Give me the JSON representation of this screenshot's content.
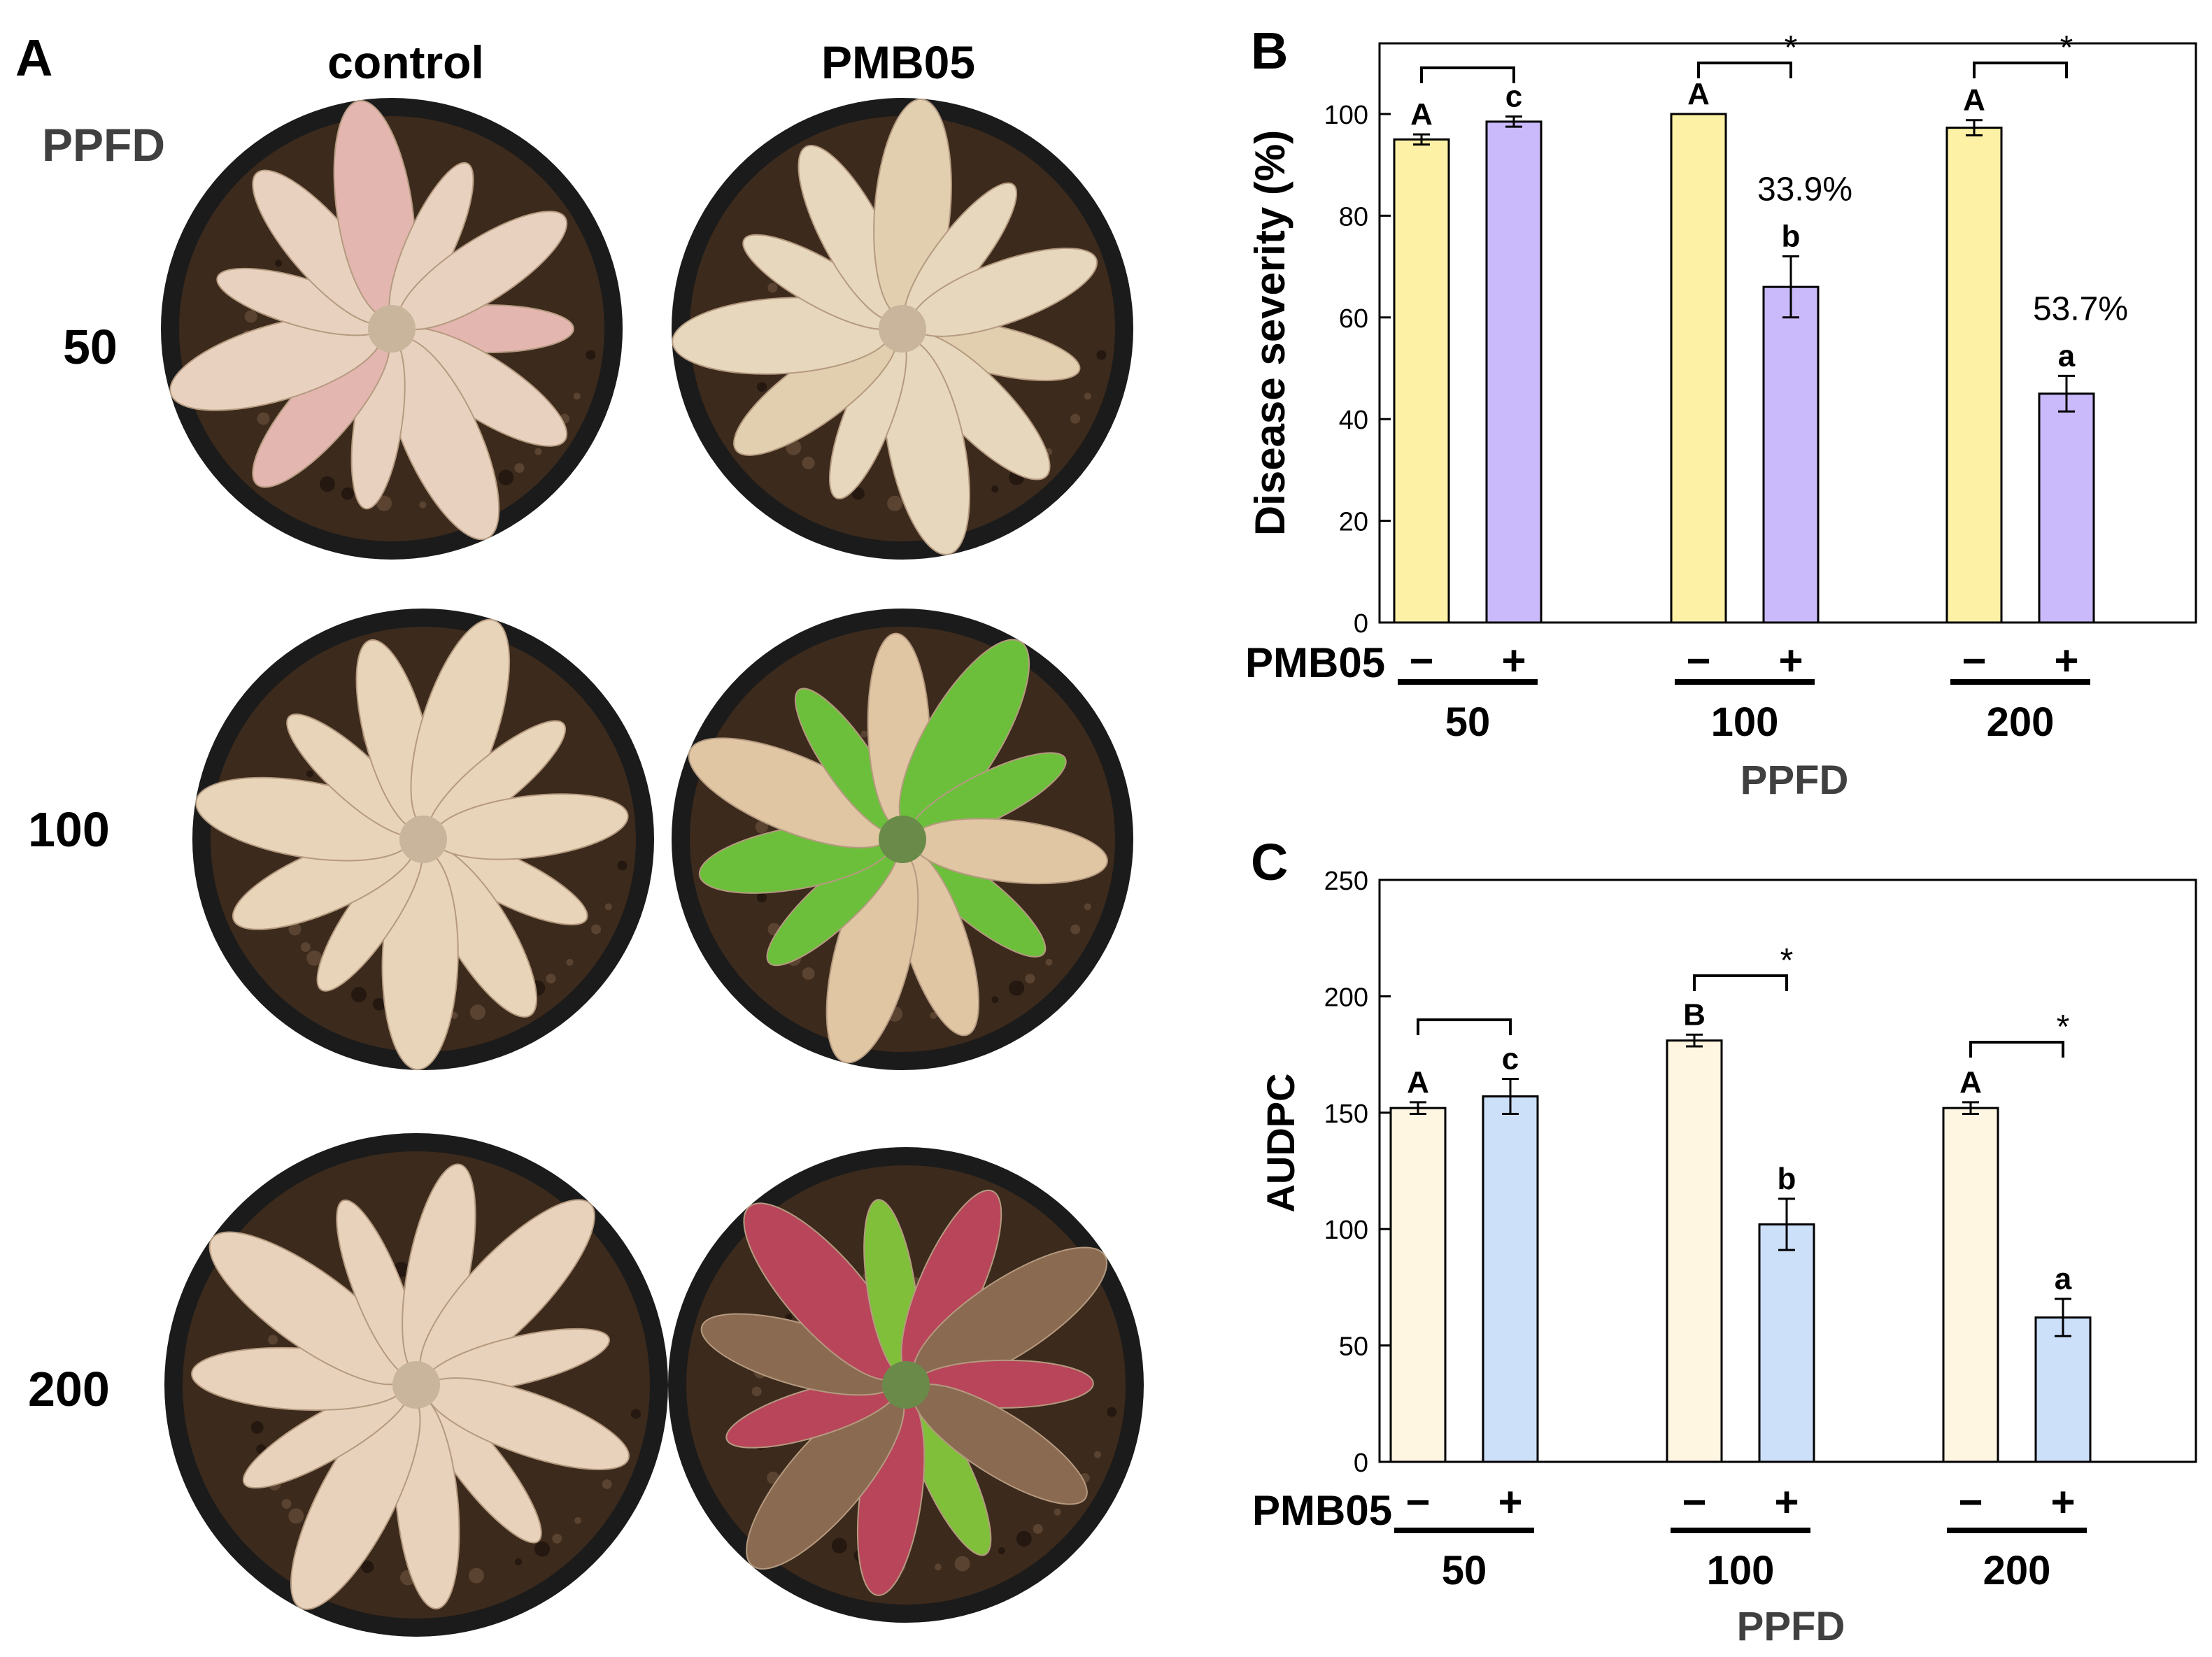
{
  "panel_a": {
    "label": "A",
    "col_headers": [
      "control",
      "PMB05"
    ],
    "row_title": "PPFD",
    "row_labels": [
      "50",
      "100",
      "200"
    ],
    "photos": [
      {
        "row": "50",
        "treatment": "control",
        "plant": "dead",
        "leaf_color": "#e8d2bf",
        "accent": "#e4b6b0"
      },
      {
        "row": "50",
        "treatment": "PMB05",
        "plant": "dead",
        "leaf_color": "#e6d7bd",
        "accent": "#e2cfb0"
      },
      {
        "row": "100",
        "treatment": "control",
        "plant": "dead",
        "leaf_color": "#e8d4b8",
        "accent": "#e8d4b8"
      },
      {
        "row": "100",
        "treatment": "PMB05",
        "plant": "green",
        "leaf_color": "#e0c6a3",
        "accent": "#6cbf3a"
      },
      {
        "row": "200",
        "treatment": "control",
        "plant": "dead",
        "leaf_color": "#e8d2bb",
        "accent": "#e8d2bb"
      },
      {
        "row": "200",
        "treatment": "PMB05",
        "plant": "red-green",
        "leaf_color": "#b8455a",
        "accent": "#7fbf3a"
      }
    ]
  },
  "chart_data": [
    {
      "panel": "B",
      "type": "bar",
      "ylabel": "Disease severity (%)",
      "xlabel": "PPFD",
      "ylim": [
        0,
        100
      ],
      "yticks": [
        0,
        20,
        40,
        60,
        80,
        100
      ],
      "grid": false,
      "categories": [
        "50",
        "100",
        "200"
      ],
      "factor_label": "PMB05",
      "factor_levels": [
        "−",
        "+"
      ],
      "series": [
        {
          "values": [
            95,
            100,
            97.3
          ],
          "errors": [
            1.0,
            0.0,
            1.5
          ],
          "letters": [
            "A",
            "A",
            "A"
          ],
          "color": "#fdf1a6"
        },
        {
          "values": [
            98.5,
            66,
            45
          ],
          "errors": [
            1.0,
            6.0,
            3.5
          ],
          "letters": [
            "c",
            "b",
            "a"
          ],
          "color": "#cbbafb"
        }
      ],
      "significance": [
        "",
        "*",
        "*"
      ],
      "reductions": [
        "",
        "33.9%",
        "53.7%"
      ]
    },
    {
      "panel": "C",
      "type": "bar",
      "ylabel": "AUDPC",
      "xlabel": "PPFD",
      "ylim": [
        0,
        250
      ],
      "yticks": [
        0,
        50,
        100,
        150,
        200,
        250
      ],
      "grid": false,
      "categories": [
        "50",
        "100",
        "200"
      ],
      "factor_label": "PMB05",
      "factor_levels": [
        "−",
        "+"
      ],
      "series": [
        {
          "values": [
            152,
            181,
            152
          ],
          "errors": [
            2.5,
            2.5,
            2.5
          ],
          "letters": [
            "A",
            "B",
            "A"
          ],
          "color": "#fff6e2"
        },
        {
          "values": [
            157,
            102,
            62
          ],
          "errors": [
            7.5,
            11.0,
            8.0
          ],
          "letters": [
            "c",
            "b",
            "a"
          ],
          "color": "#cde0fa"
        }
      ],
      "significance": [
        "",
        "*",
        "*"
      ],
      "reductions": [
        "",
        "",
        ""
      ]
    }
  ]
}
